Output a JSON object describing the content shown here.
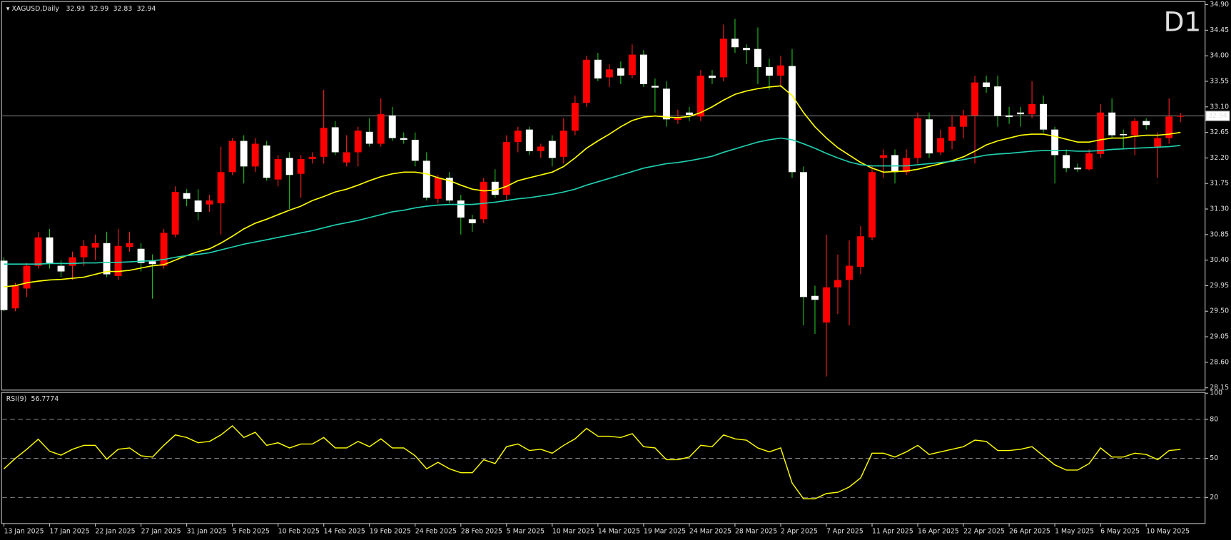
{
  "chart_data": [
    {
      "type": "candlestick",
      "title": "XAGUSD,Daily",
      "timeframe": "D1",
      "up_color": "#ff0000",
      "down_color": "#ffffff",
      "up_wick_color": "#ff2020",
      "down_wick_color": "#22c022",
      "price_line_color": "#a0a0a0",
      "timeframe_color": "#ff0000",
      "categories": [
        "13 Jan 2025",
        null,
        null,
        null,
        "17 Jan 2025",
        null,
        null,
        null,
        "22 Jan 2025",
        null,
        null,
        null,
        "27 Jan 2025",
        null,
        null,
        null,
        "31 Jan 2025",
        null,
        null,
        null,
        "5 Feb 2025",
        null,
        null,
        null,
        "10 Feb 2025",
        null,
        null,
        null,
        "14 Feb 2025",
        null,
        null,
        null,
        "19 Feb 2025",
        null,
        null,
        null,
        "24 Feb 2025",
        null,
        null,
        null,
        "28 Feb 2025",
        null,
        null,
        null,
        "5 Mar 2025",
        null,
        null,
        null,
        "10 Mar 2025",
        null,
        null,
        null,
        "14 Mar 2025",
        null,
        null,
        null,
        "19 Mar 2025",
        null,
        null,
        null,
        "24 Mar 2025",
        null,
        null,
        null,
        "28 Mar 2025",
        null,
        null,
        null,
        "2 Apr 2025",
        null,
        null,
        null,
        "7 Apr 2025",
        null,
        null,
        null,
        "11 Apr 2025",
        null,
        null,
        null,
        "16 Apr 2025",
        null,
        null,
        null,
        "22 Apr 2025",
        null,
        null,
        null,
        "26 Apr 2025",
        null,
        null,
        null,
        "1 May 2025",
        null,
        null,
        null,
        "6 May 2025",
        null,
        null,
        null,
        "10 May 2025",
        null,
        null,
        null
      ],
      "ohlc": [
        [
          30.39,
          30.45,
          29.5,
          29.52
        ],
        [
          29.55,
          30.0,
          29.5,
          29.95
        ],
        [
          29.9,
          30.35,
          29.75,
          30.3
        ],
        [
          30.3,
          30.9,
          30.25,
          30.8
        ],
        [
          30.8,
          30.95,
          30.25,
          30.35
        ],
        [
          30.3,
          30.4,
          30.1,
          30.2
        ],
        [
          30.3,
          30.55,
          30.05,
          30.45
        ],
        [
          30.45,
          30.75,
          30.3,
          30.65
        ],
        [
          30.62,
          30.85,
          30.4,
          30.7
        ],
        [
          30.7,
          30.9,
          30.1,
          30.15
        ],
        [
          30.12,
          30.95,
          30.05,
          30.65
        ],
        [
          30.63,
          30.9,
          30.55,
          30.7
        ],
        [
          30.6,
          30.7,
          30.2,
          30.35
        ],
        [
          30.38,
          30.5,
          29.72,
          30.33
        ],
        [
          30.3,
          30.95,
          30.25,
          30.88
        ],
        [
          30.85,
          31.7,
          30.8,
          31.6
        ],
        [
          31.58,
          31.65,
          31.35,
          31.48
        ],
        [
          31.45,
          31.65,
          31.1,
          31.25
        ],
        [
          31.38,
          31.55,
          31.25,
          31.45
        ],
        [
          31.4,
          32.4,
          30.85,
          31.95
        ],
        [
          31.95,
          32.55,
          31.9,
          32.5
        ],
        [
          32.5,
          32.6,
          31.75,
          32.05
        ],
        [
          32.05,
          32.55,
          31.95,
          32.45
        ],
        [
          32.42,
          32.5,
          31.8,
          31.85
        ],
        [
          31.82,
          32.25,
          31.7,
          32.18
        ],
        [
          32.2,
          32.3,
          31.3,
          31.9
        ],
        [
          31.92,
          32.25,
          31.5,
          32.18
        ],
        [
          32.18,
          32.3,
          32.1,
          32.22
        ],
        [
          32.22,
          33.4,
          32.1,
          32.73
        ],
        [
          32.74,
          32.85,
          32.25,
          32.3
        ],
        [
          32.12,
          32.6,
          32.05,
          32.3
        ],
        [
          32.3,
          32.75,
          32.05,
          32.68
        ],
        [
          32.66,
          32.9,
          32.4,
          32.45
        ],
        [
          32.45,
          33.25,
          32.4,
          32.97
        ],
        [
          32.95,
          33.1,
          32.5,
          32.55
        ],
        [
          32.55,
          32.65,
          32.45,
          32.52
        ],
        [
          32.52,
          32.65,
          32.05,
          32.15
        ],
        [
          32.15,
          32.3,
          31.45,
          31.5
        ],
        [
          31.48,
          31.9,
          31.4,
          31.85
        ],
        [
          31.85,
          31.95,
          31.4,
          31.45
        ],
        [
          31.45,
          31.55,
          30.85,
          31.15
        ],
        [
          31.12,
          31.2,
          30.9,
          31.05
        ],
        [
          31.12,
          31.85,
          31.05,
          31.78
        ],
        [
          31.78,
          32.0,
          31.5,
          31.55
        ],
        [
          31.55,
          32.6,
          31.45,
          32.48
        ],
        [
          32.48,
          32.75,
          32.3,
          32.68
        ],
        [
          32.7,
          32.75,
          32.25,
          32.32
        ],
        [
          32.32,
          32.45,
          32.2,
          32.4
        ],
        [
          32.5,
          32.6,
          32.05,
          32.2
        ],
        [
          32.22,
          32.9,
          32.1,
          32.68
        ],
        [
          32.68,
          33.3,
          32.6,
          33.17
        ],
        [
          33.17,
          34.0,
          33.1,
          33.93
        ],
        [
          33.93,
          34.05,
          33.55,
          33.6
        ],
        [
          33.62,
          33.85,
          33.45,
          33.76
        ],
        [
          33.78,
          33.9,
          33.5,
          33.65
        ],
        [
          33.66,
          34.2,
          33.6,
          34.02
        ],
        [
          34.02,
          34.1,
          33.45,
          33.5
        ],
        [
          33.47,
          33.6,
          33.0,
          33.44
        ],
        [
          33.42,
          33.55,
          32.75,
          32.88
        ],
        [
          32.87,
          33.05,
          32.8,
          32.92
        ],
        [
          33.0,
          33.1,
          32.85,
          32.96
        ],
        [
          32.93,
          33.75,
          32.85,
          33.65
        ],
        [
          33.65,
          33.75,
          33.5,
          33.61
        ],
        [
          33.62,
          34.55,
          33.55,
          34.3
        ],
        [
          34.3,
          34.65,
          34.05,
          34.15
        ],
        [
          34.14,
          34.2,
          33.85,
          34.1
        ],
        [
          34.12,
          34.5,
          33.5,
          33.8
        ],
        [
          33.8,
          33.95,
          33.4,
          33.65
        ],
        [
          33.65,
          34.0,
          33.45,
          33.83
        ],
        [
          33.82,
          34.12,
          31.85,
          31.95
        ],
        [
          31.95,
          32.05,
          29.25,
          29.75
        ],
        [
          29.77,
          29.95,
          29.1,
          29.7
        ],
        [
          29.3,
          30.85,
          28.35,
          29.92
        ],
        [
          29.92,
          30.5,
          29.45,
          30.05
        ],
        [
          30.05,
          30.75,
          29.25,
          30.3
        ],
        [
          30.28,
          31.0,
          30.15,
          30.82
        ],
        [
          30.8,
          32.05,
          30.75,
          31.95
        ],
        [
          32.2,
          32.35,
          31.85,
          32.25
        ],
        [
          32.25,
          32.35,
          31.75,
          31.95
        ],
        [
          31.95,
          32.35,
          31.9,
          32.2
        ],
        [
          32.2,
          33.0,
          32.1,
          32.9
        ],
        [
          32.88,
          33.0,
          32.2,
          32.28
        ],
        [
          32.3,
          32.7,
          32.25,
          32.55
        ],
        [
          32.5,
          32.95,
          32.35,
          32.75
        ],
        [
          32.75,
          33.05,
          32.55,
          32.95
        ],
        [
          32.95,
          33.65,
          32.1,
          33.53
        ],
        [
          33.53,
          33.65,
          33.35,
          33.45
        ],
        [
          33.46,
          33.65,
          32.75,
          32.94
        ],
        [
          32.95,
          33.1,
          32.8,
          32.92
        ],
        [
          33.0,
          33.1,
          32.75,
          32.97
        ],
        [
          32.97,
          33.55,
          32.9,
          33.15
        ],
        [
          33.15,
          33.3,
          32.65,
          32.7
        ],
        [
          32.7,
          32.75,
          31.75,
          32.25
        ],
        [
          32.25,
          32.35,
          31.95,
          32.02
        ],
        [
          32.03,
          32.1,
          31.95,
          32.0
        ],
        [
          32.0,
          32.35,
          31.98,
          32.28
        ],
        [
          32.27,
          33.15,
          32.2,
          33.0
        ],
        [
          33.0,
          33.25,
          32.55,
          32.6
        ],
        [
          32.62,
          32.7,
          32.35,
          32.6
        ],
        [
          32.6,
          32.9,
          32.25,
          32.85
        ],
        [
          32.85,
          32.9,
          32.7,
          32.78
        ],
        [
          32.4,
          32.65,
          31.85,
          32.55
        ],
        [
          32.55,
          33.25,
          32.45,
          32.93
        ],
        [
          32.93,
          32.99,
          32.83,
          32.94
        ]
      ],
      "series": [
        {
          "color": "#ffff00",
          "values": [
            29.93,
            29.95,
            30.0,
            30.03,
            30.05,
            30.06,
            30.08,
            30.1,
            30.15,
            30.2,
            30.2,
            30.22,
            30.26,
            30.3,
            30.32,
            30.4,
            30.48,
            30.55,
            30.6,
            30.7,
            30.82,
            30.95,
            31.05,
            31.12,
            31.2,
            31.28,
            31.35,
            31.45,
            31.52,
            31.6,
            31.65,
            31.72,
            31.8,
            31.87,
            31.92,
            31.95,
            31.95,
            31.92,
            31.85,
            31.8,
            31.72,
            31.65,
            31.62,
            31.63,
            31.7,
            31.8,
            31.85,
            31.9,
            31.95,
            32.05,
            32.2,
            32.37,
            32.5,
            32.62,
            32.75,
            32.86,
            32.92,
            32.94,
            32.92,
            32.91,
            32.93,
            33.0,
            33.1,
            33.22,
            33.32,
            33.38,
            33.42,
            33.45,
            33.47,
            33.3,
            33.0,
            32.75,
            32.55,
            32.38,
            32.25,
            32.12,
            32.02,
            31.95,
            31.96,
            31.97,
            32.0,
            32.05,
            32.1,
            32.15,
            32.22,
            32.32,
            32.43,
            32.5,
            32.55,
            32.6,
            32.62,
            32.62,
            32.58,
            32.53,
            32.48,
            32.48,
            32.52,
            32.55,
            32.55,
            32.58,
            32.6,
            32.6,
            32.62,
            32.65
          ]
        },
        {
          "color": "#20d0b0",
          "values": [
            30.33,
            30.33,
            30.33,
            30.33,
            30.34,
            30.34,
            30.34,
            30.35,
            30.35,
            30.36,
            30.36,
            30.37,
            30.38,
            30.39,
            30.41,
            30.45,
            30.48,
            30.5,
            30.53,
            30.58,
            30.63,
            30.68,
            30.72,
            30.76,
            30.8,
            30.84,
            30.88,
            30.92,
            30.97,
            31.02,
            31.06,
            31.1,
            31.15,
            31.2,
            31.25,
            31.28,
            31.32,
            31.35,
            31.37,
            31.38,
            31.38,
            31.38,
            31.4,
            31.42,
            31.45,
            31.48,
            31.5,
            31.53,
            31.56,
            31.6,
            31.65,
            31.72,
            31.78,
            31.84,
            31.9,
            31.96,
            32.02,
            32.06,
            32.1,
            32.12,
            32.15,
            32.19,
            32.23,
            32.3,
            32.36,
            32.42,
            32.48,
            32.52,
            32.55,
            32.52,
            32.45,
            32.37,
            32.28,
            32.2,
            32.13,
            32.08,
            32.06,
            32.06,
            32.06,
            32.06,
            32.08,
            32.1,
            32.12,
            32.14,
            32.17,
            32.21,
            32.25,
            32.27,
            32.28,
            32.3,
            32.32,
            32.33,
            32.33,
            32.33,
            32.32,
            32.32,
            32.33,
            32.35,
            32.36,
            32.37,
            32.38,
            32.39,
            32.4,
            32.42
          ]
        }
      ],
      "ylim": [
        28.11,
        34.955
      ],
      "yticks": [
        {
          "value": 34.9,
          "label": "34.90"
        },
        34.45,
        {
          "value": 34.0,
          "label": "34.00"
        },
        33.55,
        {
          "value": 33.1,
          "label": "33.10"
        },
        32.65,
        {
          "value": 32.2,
          "label": "32.20"
        },
        31.75,
        {
          "value": 31.3,
          "label": "31.30"
        },
        30.85,
        {
          "value": 30.4,
          "label": "30.40"
        },
        29.95,
        {
          "value": 29.5,
          "label": "29.50"
        },
        29.05,
        {
          "value": 28.6,
          "label": "28.60"
        },
        28.15
      ]
    },
    {
      "type": "line",
      "title": "RSI(9)",
      "color": "#ffff00",
      "values": [
        42,
        50,
        57,
        64.7,
        55.5,
        52.5,
        57,
        60,
        60,
        49.4,
        57,
        58,
        52,
        51,
        60,
        68,
        66,
        62,
        63,
        68,
        75,
        66,
        70,
        60,
        62,
        58,
        61,
        61,
        66,
        58,
        58,
        63,
        59,
        65,
        58,
        58,
        52,
        42,
        47,
        42,
        39,
        39,
        49,
        46,
        59,
        61,
        56,
        57,
        54,
        60,
        65,
        73,
        67,
        67,
        66,
        69,
        59,
        58,
        49,
        49,
        51,
        60,
        59,
        68,
        65,
        64,
        58,
        55,
        58,
        31,
        19,
        19,
        23,
        24,
        28,
        35,
        54,
        54,
        51,
        55,
        60,
        53,
        55,
        57,
        59,
        64,
        63,
        56,
        56,
        57,
        59,
        52,
        45,
        41,
        41,
        46,
        58,
        51,
        51,
        54,
        53,
        49,
        56,
        56.7774
      ],
      "ylim": [
        0,
        100
      ],
      "yticks": [
        100,
        80,
        50,
        20
      ],
      "levels": [
        80,
        50,
        20
      ]
    }
  ]
}
